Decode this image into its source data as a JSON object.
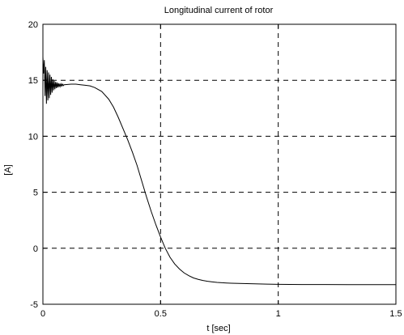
{
  "chart_data": {
    "type": "line",
    "title": "Longitudinal current of rotor",
    "xlabel": "t [sec]",
    "ylabel": "[A]",
    "xlim": [
      0,
      1.5
    ],
    "ylim": [
      -5,
      20
    ],
    "xticks": [
      0,
      0.5,
      1,
      1.5
    ],
    "xtick_labels": [
      "0",
      "0.5",
      "1",
      "1.5"
    ],
    "yticks": [
      -5,
      0,
      5,
      10,
      15,
      20
    ],
    "ytick_labels": [
      "-5",
      "0",
      "5",
      "10",
      "15",
      "20"
    ],
    "grid": true,
    "grid_style": "dashed",
    "line_color": "#000000",
    "series": [
      {
        "x": [
          0,
          0.003,
          0.006,
          0.009,
          0.012,
          0.015,
          0.018,
          0.021,
          0.024,
          0.027,
          0.03,
          0.033,
          0.036,
          0.039,
          0.042,
          0.045,
          0.048,
          0.051,
          0.054,
          0.057,
          0.06,
          0.063,
          0.066,
          0.069,
          0.072,
          0.075,
          0.078,
          0.081,
          0.084,
          0.087,
          0.09,
          0.1,
          0.12,
          0.14,
          0.16,
          0.18,
          0.2,
          0.22,
          0.25,
          0.28,
          0.3,
          0.32,
          0.34,
          0.36,
          0.38,
          0.4,
          0.42,
          0.44,
          0.46,
          0.48,
          0.5,
          0.52,
          0.54,
          0.56,
          0.58,
          0.6,
          0.62,
          0.64,
          0.66,
          0.68,
          0.7,
          0.72,
          0.74,
          0.76,
          0.78,
          0.8,
          0.85,
          0.9,
          0.95,
          1.0,
          1.05,
          1.1,
          1.2,
          1.3,
          1.4,
          1.5
        ],
        "y": [
          17.1,
          15.6,
          16.8,
          13.6,
          16.2,
          12.9,
          15.9,
          13.2,
          15.7,
          13.4,
          15.5,
          13.7,
          15.3,
          13.9,
          15.1,
          14.1,
          14.95,
          14.2,
          14.85,
          14.3,
          14.8,
          14.35,
          14.75,
          14.4,
          14.7,
          14.45,
          14.68,
          14.5,
          14.65,
          14.52,
          14.6,
          14.62,
          14.65,
          14.65,
          14.6,
          14.55,
          14.5,
          14.35,
          14.0,
          13.3,
          12.6,
          11.7,
          10.7,
          9.7,
          8.6,
          7.4,
          6.0,
          4.6,
          3.3,
          2.1,
          1.0,
          0.0,
          -0.8,
          -1.4,
          -1.85,
          -2.2,
          -2.45,
          -2.65,
          -2.78,
          -2.88,
          -2.95,
          -3.0,
          -3.05,
          -3.08,
          -3.1,
          -3.12,
          -3.15,
          -3.18,
          -3.2,
          -3.22,
          -3.23,
          -3.24,
          -3.24,
          -3.25,
          -3.25,
          -3.25
        ]
      }
    ]
  }
}
